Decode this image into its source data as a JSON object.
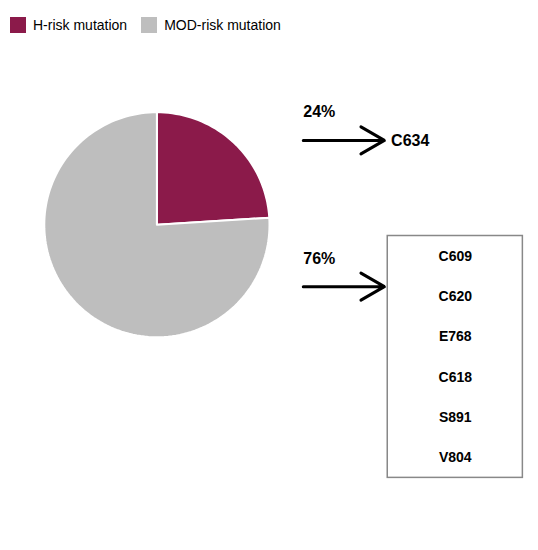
{
  "chart_data": {
    "type": "pie",
    "categories": [
      "H-risk mutation",
      "MOD-risk mutation"
    ],
    "values": [
      24,
      76
    ],
    "value_labels": [
      "24%",
      "76%"
    ],
    "data_labels": true,
    "colors": [
      "#8B1A4A",
      "#BEBEBE"
    ],
    "annotations": [
      [
        "C634"
      ],
      [
        "C609",
        "C620",
        "E768",
        "C618",
        "S891",
        "V804"
      ]
    ],
    "legend": "top-left"
  }
}
